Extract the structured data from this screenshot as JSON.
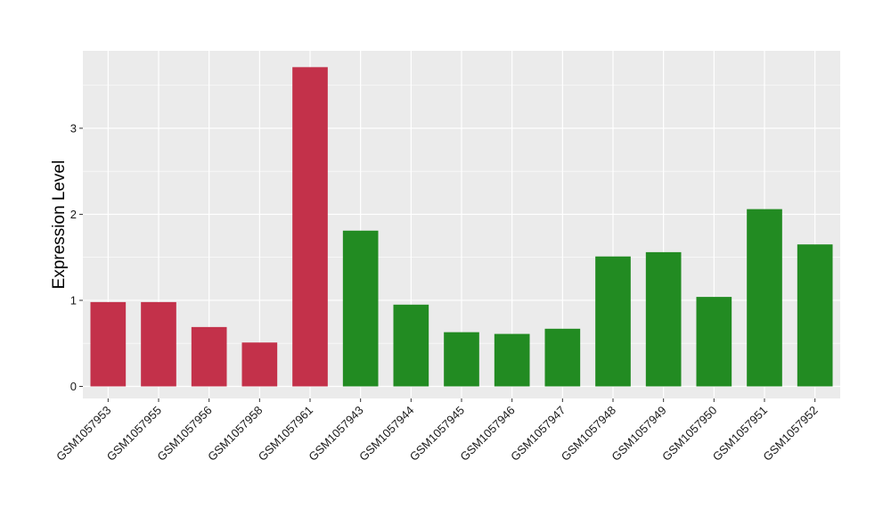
{
  "chart_data": {
    "type": "bar",
    "categories": [
      "GSM1057953",
      "GSM1057955",
      "GSM1057956",
      "GSM1057958",
      "GSM1057961",
      "GSM1057943",
      "GSM1057944",
      "GSM1057945",
      "GSM1057946",
      "GSM1057947",
      "GSM1057948",
      "GSM1057949",
      "GSM1057950",
      "GSM1057951",
      "GSM1057952"
    ],
    "values": [
      0.98,
      0.98,
      0.69,
      0.51,
      3.71,
      1.81,
      0.95,
      0.63,
      0.61,
      0.67,
      1.51,
      1.56,
      1.04,
      2.06,
      1.65
    ],
    "groups": [
      "a",
      "a",
      "a",
      "a",
      "a",
      "b",
      "b",
      "b",
      "b",
      "b",
      "b",
      "b",
      "b",
      "b",
      "b"
    ],
    "group_colors": {
      "a": "#c3314a",
      "b": "#228b22"
    },
    "title": "",
    "xlabel": "",
    "ylabel": "Expression Level",
    "ylim": [
      -0.14,
      3.9
    ],
    "yticks": [
      0,
      1,
      2,
      3
    ],
    "yticks_labels": [
      "0",
      "1",
      "2",
      "3"
    ],
    "grid": true,
    "panel_background": "#ebebeb",
    "grid_color": "#ffffff"
  }
}
